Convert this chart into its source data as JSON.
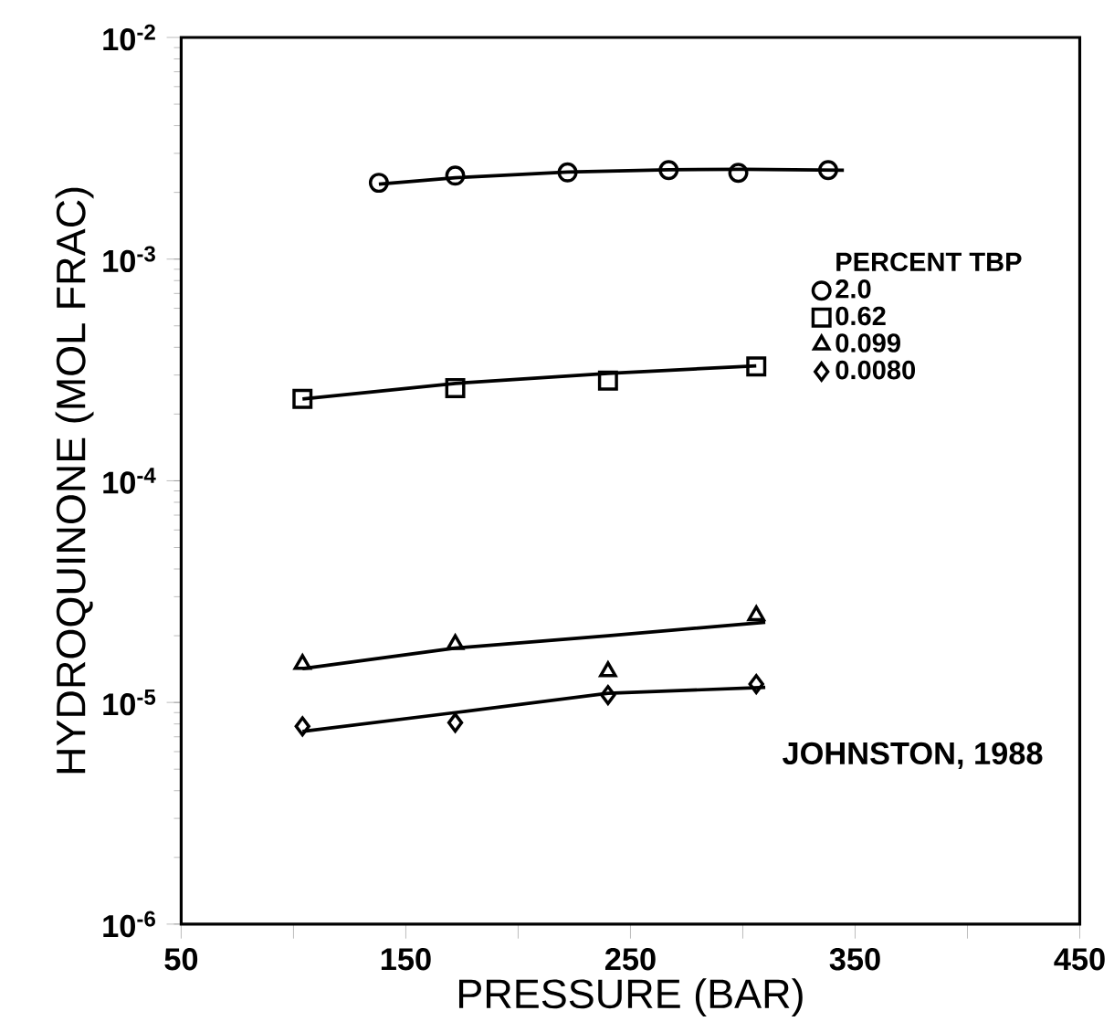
{
  "chart_data": {
    "type": "scatter",
    "xlabel": "PRESSURE  (BAR)",
    "ylabel": "HYDROQUINONE  (MOL  FRAC)",
    "legend_title": "PERCENT TBP",
    "log": "y",
    "legend": "right",
    "xlim": [
      50,
      450
    ],
    "ylim": [
      1e-06,
      0.01
    ],
    "xticks": [
      50,
      {
        "value": 100,
        "label": null
      },
      150,
      {
        "value": 200,
        "label": null
      },
      250,
      {
        "value": 300,
        "label": null
      },
      350,
      {
        "value": 400,
        "label": null
      },
      450
    ],
    "yticks": [
      {
        "value": 1e-06,
        "label": "10$^{-6}$"
      },
      {
        "value": 1e-05,
        "label": "10$^{-5}$"
      },
      {
        "value": 0.0001,
        "label": "10$^{-4}$"
      },
      {
        "value": 0.001,
        "label": "10$^{-3}$"
      },
      {
        "value": 0.01,
        "label": "10$^{-2}$"
      }
    ],
    "annotations": [
      "JOHNSTON, 1988"
    ],
    "series": [
      {
        "name": "2.0",
        "marker": "circle",
        "color": "#000000",
        "x": [
          138,
          172,
          222,
          267,
          298,
          338
        ],
        "values": [
          0.00221,
          0.00238,
          0.00246,
          0.00252,
          0.00245,
          0.00252
        ]
      },
      {
        "name": "0.62",
        "marker": "square",
        "color": "#000000",
        "x": [
          104,
          172,
          240,
          306
        ],
        "values": [
          0.000234,
          0.000262,
          0.000283,
          0.000328
        ]
      },
      {
        "name": "0.099",
        "marker": "triangle",
        "color": "#000000",
        "x": [
          104,
          172,
          240,
          306
        ],
        "values": [
          1.49e-05,
          1.83e-05,
          1.38e-05,
          2.47e-05
        ]
      },
      {
        "name": "0.0080",
        "marker": "diamond",
        "color": "#000000",
        "x": [
          104,
          172,
          240,
          306
        ],
        "values": [
          7.8e-06,
          8.1e-06,
          1.08e-05,
          1.21e-05
        ]
      },
      {
        "type": "line",
        "marker": "none",
        "line_style": "solid",
        "color": "#000000",
        "x": [
          138,
          172,
          222,
          267,
          300,
          345
        ],
        "values": [
          0.00218,
          0.00233,
          0.00247,
          0.00253,
          0.00254,
          0.00252
        ]
      },
      {
        "type": "line",
        "marker": "none",
        "line_style": "solid",
        "color": "#000000",
        "x": [
          104,
          172,
          240,
          306
        ],
        "values": [
          0.000234,
          0.000275,
          0.000305,
          0.00033
        ]
      },
      {
        "type": "line",
        "marker": "none",
        "line_style": "solid",
        "color": "#000000",
        "x": [
          104,
          172,
          240,
          310
        ],
        "values": [
          1.42e-05,
          1.76e-05,
          2e-05,
          2.3e-05
        ]
      },
      {
        "type": "line",
        "marker": "none",
        "line_style": "solid",
        "color": "#000000",
        "x": [
          104,
          172,
          240,
          310
        ],
        "values": [
          7.4e-06,
          9e-06,
          1.1e-05,
          1.17e-05
        ]
      }
    ]
  }
}
